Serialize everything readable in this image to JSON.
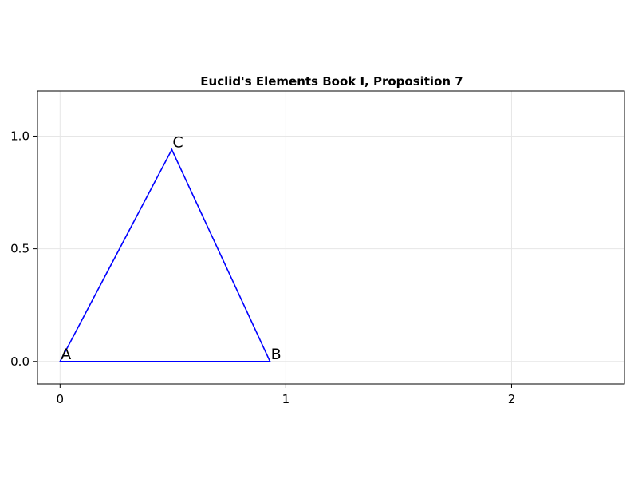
{
  "chart_data": {
    "type": "line",
    "title": "Euclid's Elements Book I, Proposition 7",
    "xlabel": "",
    "ylabel": "",
    "xlim": [
      -0.1,
      2.5
    ],
    "ylim": [
      -0.1,
      1.2
    ],
    "grid": true,
    "x_ticks": [
      0,
      1,
      2
    ],
    "x_tick_labels": [
      "0",
      "1",
      "2"
    ],
    "y_ticks": [
      0.0,
      0.5,
      1.0
    ],
    "y_tick_labels": [
      "0.0",
      "0.5",
      "1.0"
    ],
    "series": [
      {
        "color": "#0000ff",
        "closed": true,
        "points": [
          {
            "x": 0.0,
            "y": 0.0
          },
          {
            "x": 0.93,
            "y": 0.0
          },
          {
            "x": 0.495,
            "y": 0.94
          }
        ]
      }
    ],
    "annotations": [
      {
        "text": "A",
        "x": 0.0,
        "y": 0.0
      },
      {
        "text": "B",
        "x": 0.93,
        "y": 0.0
      },
      {
        "text": "C",
        "x": 0.495,
        "y": 0.94
      }
    ]
  }
}
